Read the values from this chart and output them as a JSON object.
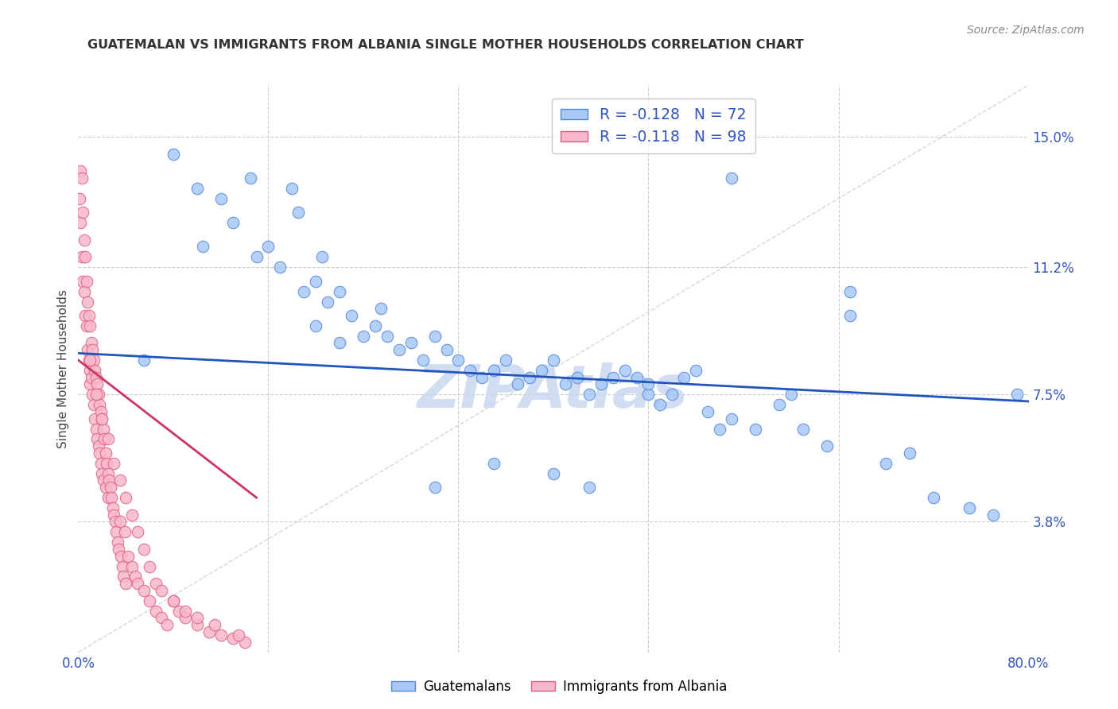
{
  "title": "GUATEMALAN VS IMMIGRANTS FROM ALBANIA SINGLE MOTHER HOUSEHOLDS CORRELATION CHART",
  "source": "Source: ZipAtlas.com",
  "ylabel": "Single Mother Households",
  "ytick_labels": [
    "3.8%",
    "7.5%",
    "11.2%",
    "15.0%"
  ],
  "ytick_values": [
    3.8,
    7.5,
    11.2,
    15.0
  ],
  "xlim": [
    0.0,
    80.0
  ],
  "ylim": [
    0.0,
    16.5
  ],
  "legend_blue_r": "R = -0.128",
  "legend_blue_n": "N = 72",
  "legend_pink_r": "R = -0.118",
  "legend_pink_n": "N = 98",
  "blue_color": "#a8c8f8",
  "pink_color": "#f8b8cb",
  "blue_edge": "#5588dd",
  "pink_edge": "#e06080",
  "trend_blue": "#2255bb",
  "trend_pink": "#cc3366",
  "diag_color": "#cccccc",
  "watermark_color": "#c8d8f0",
  "blue_trend_x0": 0.0,
  "blue_trend_y0": 8.7,
  "blue_trend_x1": 80.0,
  "blue_trend_y1": 7.3,
  "pink_trend_x0": 0.0,
  "pink_trend_y0": 8.5,
  "pink_trend_x1": 15.0,
  "pink_trend_y1": 4.5,
  "blue_scatter_x": [
    5.5,
    8.0,
    10.0,
    10.5,
    12.0,
    13.0,
    14.5,
    15.0,
    16.0,
    17.0,
    18.0,
    18.5,
    19.0,
    20.0,
    20.5,
    21.0,
    22.0,
    23.0,
    24.0,
    25.0,
    25.5,
    26.0,
    27.0,
    28.0,
    29.0,
    30.0,
    31.0,
    32.0,
    33.0,
    34.0,
    35.0,
    36.0,
    37.0,
    38.0,
    39.0,
    40.0,
    41.0,
    42.0,
    43.0,
    44.0,
    45.0,
    46.0,
    47.0,
    48.0,
    49.0,
    50.0,
    51.0,
    52.0,
    53.0,
    54.0,
    55.0,
    57.0,
    59.0,
    61.0,
    63.0,
    65.0,
    68.0,
    70.0,
    72.0,
    75.0,
    77.0,
    79.0,
    55.0,
    65.0,
    40.0,
    30.0,
    20.0,
    22.0,
    60.0,
    48.0,
    35.0,
    43.0
  ],
  "blue_scatter_y": [
    8.5,
    14.5,
    13.5,
    11.8,
    13.2,
    12.5,
    13.8,
    11.5,
    11.8,
    11.2,
    13.5,
    12.8,
    10.5,
    10.8,
    11.5,
    10.2,
    10.5,
    9.8,
    9.2,
    9.5,
    10.0,
    9.2,
    8.8,
    9.0,
    8.5,
    9.2,
    8.8,
    8.5,
    8.2,
    8.0,
    8.2,
    8.5,
    7.8,
    8.0,
    8.2,
    8.5,
    7.8,
    8.0,
    7.5,
    7.8,
    8.0,
    8.2,
    8.0,
    7.5,
    7.2,
    7.5,
    8.0,
    8.2,
    7.0,
    6.5,
    6.8,
    6.5,
    7.2,
    6.5,
    6.0,
    9.8,
    5.5,
    5.8,
    4.5,
    4.2,
    4.0,
    7.5,
    13.8,
    10.5,
    5.2,
    4.8,
    9.5,
    9.0,
    7.5,
    7.8,
    5.5,
    4.8
  ],
  "pink_scatter_x": [
    0.1,
    0.2,
    0.2,
    0.3,
    0.3,
    0.4,
    0.4,
    0.5,
    0.5,
    0.6,
    0.6,
    0.7,
    0.7,
    0.8,
    0.8,
    0.9,
    0.9,
    1.0,
    1.0,
    1.0,
    1.1,
    1.1,
    1.2,
    1.2,
    1.3,
    1.3,
    1.4,
    1.4,
    1.5,
    1.5,
    1.6,
    1.6,
    1.7,
    1.7,
    1.8,
    1.8,
    1.9,
    1.9,
    2.0,
    2.0,
    2.1,
    2.1,
    2.2,
    2.3,
    2.3,
    2.4,
    2.5,
    2.5,
    2.6,
    2.7,
    2.8,
    2.9,
    3.0,
    3.1,
    3.2,
    3.3,
    3.4,
    3.5,
    3.6,
    3.7,
    3.8,
    3.9,
    4.0,
    4.2,
    4.5,
    4.8,
    5.0,
    5.5,
    6.0,
    6.5,
    7.0,
    7.5,
    8.0,
    8.5,
    9.0,
    10.0,
    11.0,
    12.0,
    13.0,
    14.0,
    1.0,
    1.5,
    2.0,
    2.5,
    3.0,
    3.5,
    4.0,
    4.5,
    5.0,
    5.5,
    6.0,
    6.5,
    7.0,
    8.0,
    9.0,
    10.0,
    11.5,
    13.5
  ],
  "pink_scatter_y": [
    13.2,
    14.0,
    12.5,
    13.8,
    11.5,
    12.8,
    10.8,
    12.0,
    10.5,
    11.5,
    9.8,
    10.8,
    9.5,
    10.2,
    8.8,
    9.8,
    8.5,
    9.5,
    8.2,
    7.8,
    9.0,
    8.0,
    8.8,
    7.5,
    8.5,
    7.2,
    8.2,
    6.8,
    8.0,
    6.5,
    7.8,
    6.2,
    7.5,
    6.0,
    7.2,
    5.8,
    7.0,
    5.5,
    6.8,
    5.2,
    6.5,
    5.0,
    6.2,
    5.8,
    4.8,
    5.5,
    5.2,
    4.5,
    5.0,
    4.8,
    4.5,
    4.2,
    4.0,
    3.8,
    3.5,
    3.2,
    3.0,
    3.8,
    2.8,
    2.5,
    2.2,
    3.5,
    2.0,
    2.8,
    2.5,
    2.2,
    2.0,
    1.8,
    1.5,
    1.2,
    1.0,
    0.8,
    1.5,
    1.2,
    1.0,
    0.8,
    0.6,
    0.5,
    0.4,
    0.3,
    8.5,
    7.5,
    6.8,
    6.2,
    5.5,
    5.0,
    4.5,
    4.0,
    3.5,
    3.0,
    2.5,
    2.0,
    1.8,
    1.5,
    1.2,
    1.0,
    0.8,
    0.5
  ]
}
